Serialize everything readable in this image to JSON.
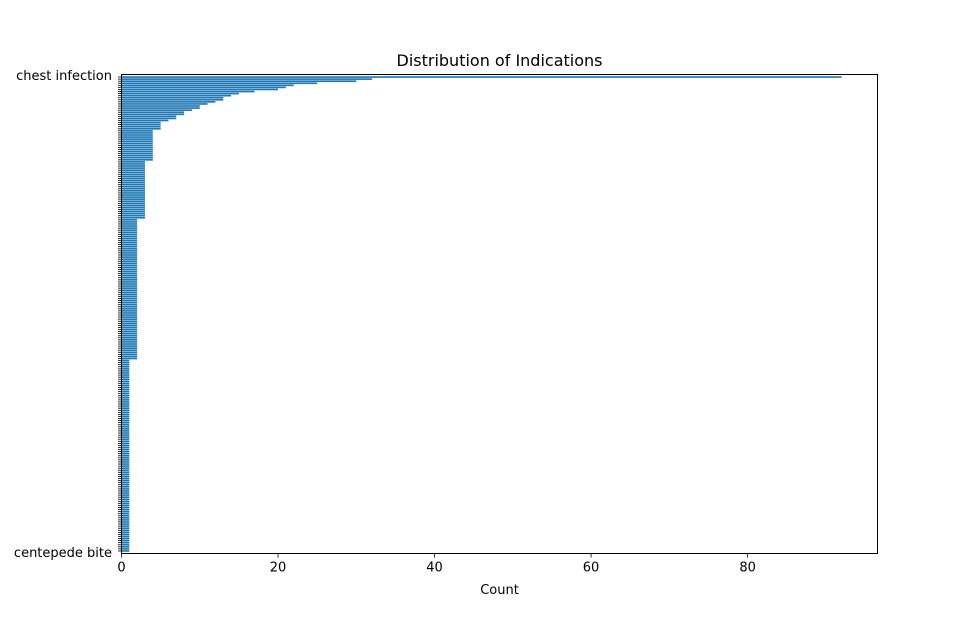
{
  "chart_data": {
    "type": "bar",
    "orientation": "horizontal",
    "title": "Distribution of Indications",
    "xlabel": "Count",
    "ylabel": "",
    "xlim": [
      0,
      96.6
    ],
    "x_ticks": [
      0,
      20,
      40,
      60,
      80
    ],
    "grid": false,
    "legend": "none",
    "bar_color": "#1f77b4",
    "first_category": "chest infection",
    "last_category": "centepede bite",
    "series": [
      {
        "values": [
          92,
          32,
          30,
          25,
          22,
          21,
          20,
          17,
          15,
          14,
          13,
          13,
          12,
          11,
          10,
          10,
          9,
          8,
          8,
          7,
          7,
          6,
          5,
          5,
          5,
          5,
          4,
          4,
          4,
          4,
          4,
          4,
          4,
          4,
          4,
          4,
          4,
          4,
          4,
          4,
          4,
          3,
          3,
          3,
          3,
          3,
          3,
          3,
          3,
          3,
          3,
          3,
          3,
          3,
          3,
          3,
          3,
          3,
          3,
          3,
          3,
          3,
          3,
          3,
          3,
          3,
          3,
          3,
          3,
          2,
          2,
          2,
          2,
          2,
          2,
          2,
          2,
          2,
          2,
          2,
          2,
          2,
          2,
          2,
          2,
          2,
          2,
          2,
          2,
          2,
          2,
          2,
          2,
          2,
          2,
          2,
          2,
          2,
          2,
          2,
          2,
          2,
          2,
          2,
          2,
          2,
          2,
          2,
          2,
          2,
          2,
          2,
          2,
          2,
          2,
          2,
          2,
          2,
          2,
          2,
          2,
          2,
          2,
          2,
          2,
          2,
          2,
          2,
          2,
          2,
          2,
          2,
          2,
          2,
          2,
          2,
          2,
          1,
          1,
          1,
          1,
          1,
          1,
          1,
          1,
          1,
          1,
          1,
          1,
          1,
          1,
          1,
          1,
          1,
          1,
          1,
          1,
          1,
          1,
          1,
          1,
          1,
          1,
          1,
          1,
          1,
          1,
          1,
          1,
          1,
          1,
          1,
          1,
          1,
          1,
          1,
          1,
          1,
          1,
          1,
          1,
          1,
          1,
          1,
          1,
          1,
          1,
          1,
          1,
          1,
          1,
          1,
          1,
          1,
          1,
          1,
          1,
          1,
          1,
          1,
          1,
          1,
          1,
          1,
          1,
          1,
          1,
          1,
          1,
          1,
          1,
          1,
          1,
          1,
          1,
          1,
          1,
          1,
          1,
          1,
          1,
          1,
          1,
          1,
          1,
          1,
          1,
          1,
          1,
          1
        ]
      }
    ]
  }
}
